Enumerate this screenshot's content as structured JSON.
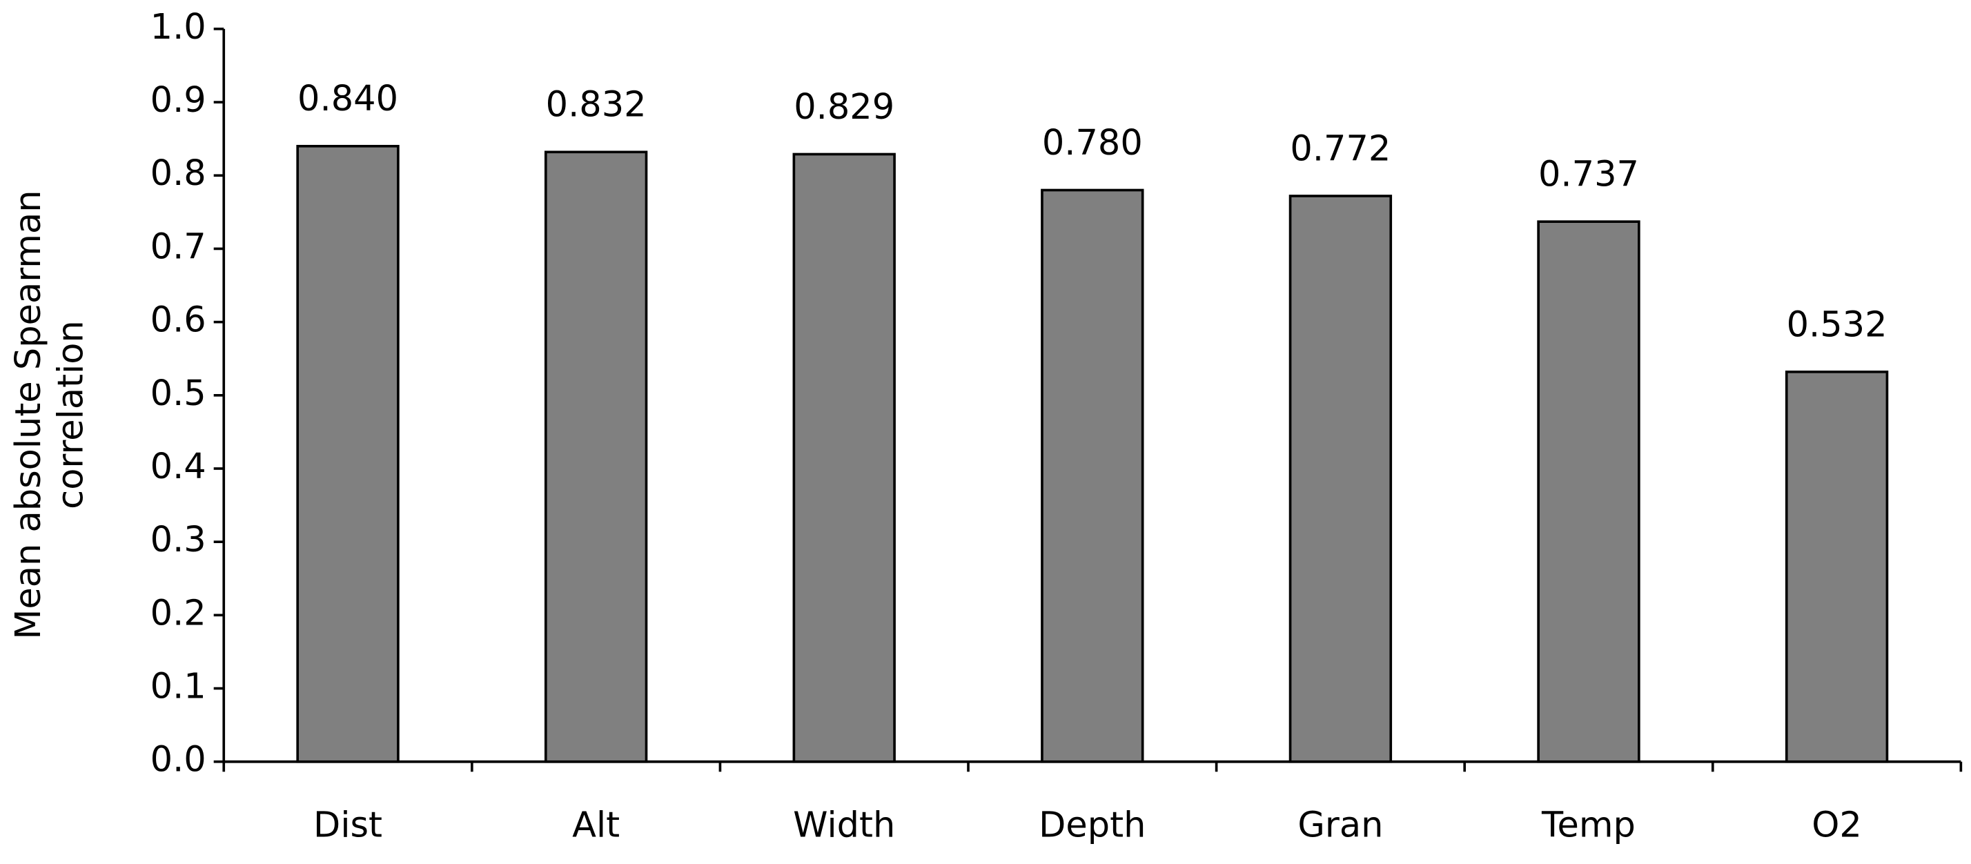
{
  "chart_data": {
    "type": "bar",
    "y_label_lines": [
      "Mean absolute Spearman",
      "correlation"
    ],
    "categories": [
      "Dist",
      "Alt",
      "Width",
      "Depth",
      "Gran",
      "Temp",
      "O2"
    ],
    "values": [
      0.84,
      0.832,
      0.829,
      0.78,
      0.772,
      0.737,
      0.532
    ],
    "value_labels": [
      "0.840",
      "0.832",
      "0.829",
      "0.780",
      "0.772",
      "0.737",
      "0.532"
    ],
    "color": "#808080",
    "ylim": [
      0,
      1
    ],
    "yticks": [
      {
        "value": 0,
        "label": "0.0"
      },
      0.1,
      0.2,
      0.3,
      0.4,
      0.5,
      0.6,
      0.7,
      0.8,
      0.9,
      {
        "value": 1,
        "label": "1.0"
      }
    ],
    "grid": false
  }
}
